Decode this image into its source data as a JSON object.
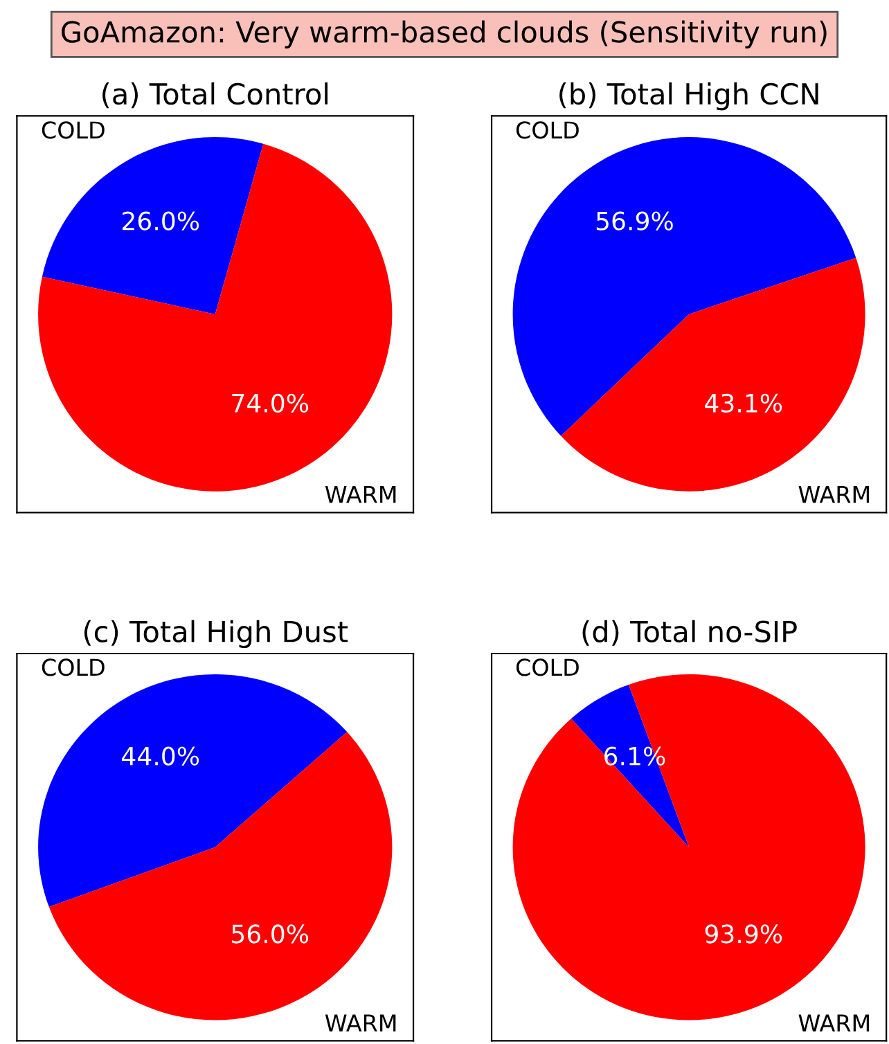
{
  "chart_data": [
    {
      "type": "pie",
      "title": "(a) Total Control",
      "annotations": [
        "GoAmazon: Very warm-based clouds (Sensitivity run)"
      ],
      "categories": [
        "COLD",
        "WARM"
      ],
      "values": [
        26.0,
        74.0
      ],
      "value_labels": [
        "26.0%",
        "74.0%"
      ],
      "colors": [
        "#0000ff",
        "#ff0000"
      ]
    },
    {
      "type": "pie",
      "title": "(b) Total High CCN",
      "categories": [
        "COLD",
        "WARM"
      ],
      "values": [
        56.9,
        43.1
      ],
      "value_labels": [
        "56.9%",
        "43.1%"
      ],
      "colors": [
        "#0000ff",
        "#ff0000"
      ]
    },
    {
      "type": "pie",
      "title": "(c) Total High Dust",
      "categories": [
        "COLD",
        "WARM"
      ],
      "values": [
        44.0,
        56.0
      ],
      "value_labels": [
        "44.0%",
        "56.0%"
      ],
      "colors": [
        "#0000ff",
        "#ff0000"
      ]
    },
    {
      "type": "pie",
      "title": "(d) Total no-SIP",
      "categories": [
        "COLD",
        "WARM"
      ],
      "values": [
        6.1,
        93.9
      ],
      "value_labels": [
        "6.1%",
        "93.9%"
      ],
      "colors": [
        "#0000ff",
        "#ff0000"
      ]
    }
  ]
}
